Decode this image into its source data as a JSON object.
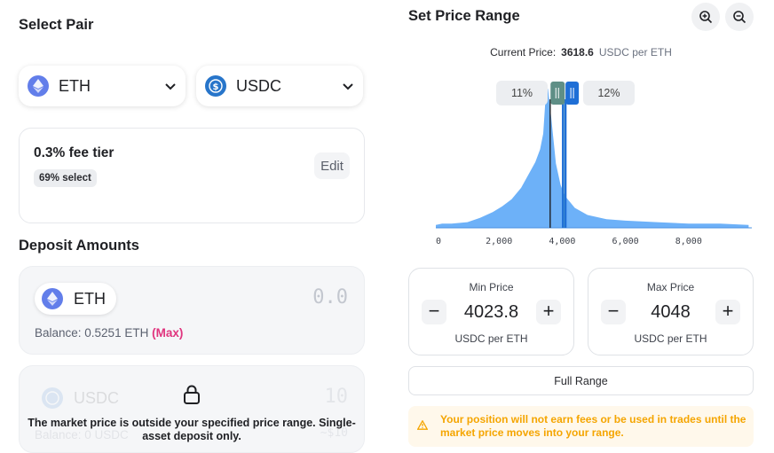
{
  "left": {
    "select_pair_title": "Select Pair",
    "token_a": {
      "symbol": "ETH",
      "icon": "eth-logo-icon"
    },
    "token_b": {
      "symbol": "USDC",
      "icon": "usdc-logo-icon"
    },
    "fee": {
      "title": "0.3% fee tier",
      "badge": "69% select",
      "edit_label": "Edit"
    },
    "deposit_title": "Deposit Amounts",
    "deposit_eth": {
      "symbol": "ETH",
      "amount": "0.0",
      "balance_label": "Balance: 0.5251 ETH",
      "max_label": "(Max)"
    },
    "deposit_usdc": {
      "symbol": "USDC",
      "amount": "10",
      "balance_label": "Balance: 0 USDC",
      "max_label": "~$10"
    },
    "lock_message": "The market price is outside your specified price range. Single-asset deposit only."
  },
  "right": {
    "title": "Set Price Range",
    "current_price": {
      "label": "Current Price:",
      "value": "3618.6",
      "unit": "USDC per ETH"
    },
    "range_badges": {
      "low": "11%",
      "high": "12%"
    },
    "min_price": {
      "label": "Min Price",
      "value": "4023.8",
      "unit": "USDC per ETH"
    },
    "max_price": {
      "label": "Max Price",
      "value": "4048",
      "unit": "USDC per ETH"
    },
    "full_range_label": "Full Range",
    "warning": "Your position will not earn fees or be used in trades until the market price moves into your range."
  },
  "colors": {
    "accent_blue": "#1f6fd6",
    "liquidity_blue": "#6db1f8",
    "pink": "#e0347e",
    "warning": "#f5a500"
  },
  "chart_data": {
    "type": "area",
    "x_ticks": [
      "0",
      "2,000",
      "4,000",
      "6,000",
      "8,000"
    ],
    "xlim": [
      0,
      10000
    ],
    "current_price": 3618.6,
    "selected_range": [
      4023.8,
      4048
    ],
    "liquidity_profile": [
      [
        0,
        0.02
      ],
      [
        200,
        0.03
      ],
      [
        500,
        0.03
      ],
      [
        1000,
        0.04
      ],
      [
        1400,
        0.07
      ],
      [
        1800,
        0.11
      ],
      [
        2100,
        0.15
      ],
      [
        2400,
        0.2
      ],
      [
        2700,
        0.28
      ],
      [
        2950,
        0.38
      ],
      [
        3150,
        0.46
      ],
      [
        3300,
        0.55
      ],
      [
        3400,
        0.66
      ],
      [
        3450,
        0.83
      ],
      [
        3500,
        1.0
      ],
      [
        3550,
        0.97
      ],
      [
        3650,
        0.78
      ],
      [
        3800,
        0.45
      ],
      [
        3950,
        0.3
      ],
      [
        4100,
        0.22
      ],
      [
        4400,
        0.14
      ],
      [
        4800,
        0.09
      ],
      [
        5400,
        0.06
      ],
      [
        6000,
        0.05
      ],
      [
        7000,
        0.04
      ],
      [
        8000,
        0.03
      ],
      [
        9000,
        0.03
      ],
      [
        9900,
        0.02
      ]
    ]
  }
}
